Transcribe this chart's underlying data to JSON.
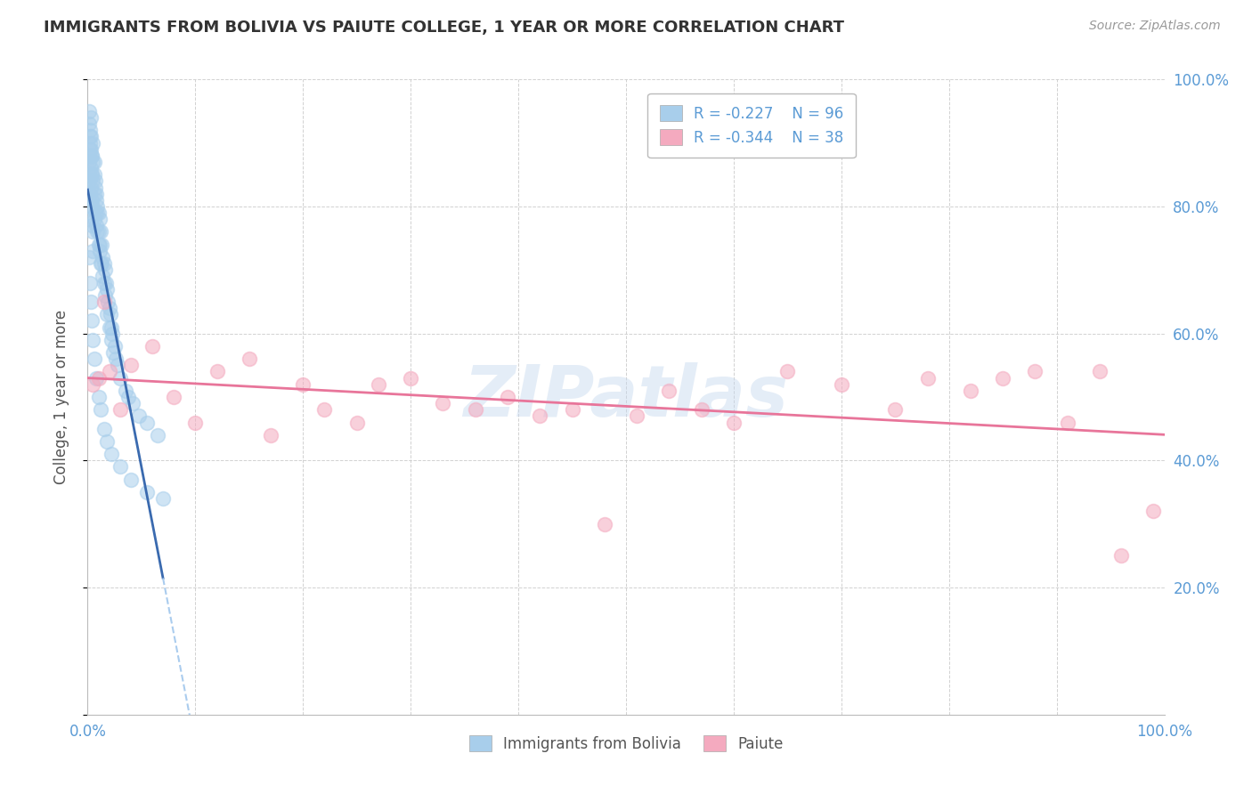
{
  "title": "IMMIGRANTS FROM BOLIVIA VS PAIUTE COLLEGE, 1 YEAR OR MORE CORRELATION CHART",
  "source_text": "Source: ZipAtlas.com",
  "ylabel": "College, 1 year or more",
  "xlim": [
    0.0,
    1.0
  ],
  "ylim": [
    0.0,
    1.0
  ],
  "xticks": [
    0.0,
    0.1,
    0.2,
    0.3,
    0.4,
    0.5,
    0.6,
    0.7,
    0.8,
    0.9,
    1.0
  ],
  "yticks": [
    0.0,
    0.2,
    0.4,
    0.6,
    0.8,
    1.0
  ],
  "blue_color": "#A8CEEB",
  "pink_color": "#F4AABF",
  "blue_line_color": "#3A6AAF",
  "pink_line_color": "#E8759A",
  "dashed_line_color": "#AACCEE",
  "legend_r1": "R = -0.227",
  "legend_n1": "N = 96",
  "legend_r2": "R = -0.344",
  "legend_n2": "N = 38",
  "watermark": "ZIPatlas",
  "n_blue": 96,
  "n_pink": 38,
  "background_color": "#FFFFFF",
  "grid_color": "#CCCCCC",
  "blue_x": [
    0.001,
    0.001,
    0.001,
    0.002,
    0.002,
    0.002,
    0.002,
    0.003,
    0.003,
    0.003,
    0.003,
    0.003,
    0.004,
    0.004,
    0.004,
    0.004,
    0.005,
    0.005,
    0.005,
    0.005,
    0.005,
    0.006,
    0.006,
    0.006,
    0.007,
    0.007,
    0.008,
    0.008,
    0.009,
    0.009,
    0.01,
    0.01,
    0.011,
    0.011,
    0.012,
    0.012,
    0.013,
    0.014,
    0.015,
    0.015,
    0.016,
    0.017,
    0.018,
    0.019,
    0.02,
    0.021,
    0.022,
    0.023,
    0.025,
    0.026,
    0.001,
    0.001,
    0.002,
    0.002,
    0.003,
    0.003,
    0.004,
    0.004,
    0.005,
    0.006,
    0.007,
    0.008,
    0.009,
    0.01,
    0.011,
    0.013,
    0.014,
    0.016,
    0.018,
    0.02,
    0.022,
    0.024,
    0.028,
    0.03,
    0.035,
    0.038,
    0.042,
    0.048,
    0.055,
    0.065,
    0.001,
    0.002,
    0.003,
    0.004,
    0.005,
    0.006,
    0.008,
    0.01,
    0.012,
    0.015,
    0.018,
    0.022,
    0.03,
    0.04,
    0.055,
    0.07
  ],
  "blue_y": [
    0.87,
    0.85,
    0.84,
    0.92,
    0.9,
    0.88,
    0.82,
    0.89,
    0.86,
    0.83,
    0.8,
    0.78,
    0.88,
    0.85,
    0.81,
    0.77,
    0.87,
    0.84,
    0.8,
    0.76,
    0.73,
    0.85,
    0.82,
    0.78,
    0.83,
    0.79,
    0.81,
    0.77,
    0.8,
    0.76,
    0.79,
    0.74,
    0.78,
    0.73,
    0.76,
    0.71,
    0.74,
    0.72,
    0.71,
    0.68,
    0.7,
    0.68,
    0.67,
    0.65,
    0.64,
    0.63,
    0.61,
    0.6,
    0.58,
    0.56,
    0.95,
    0.93,
    0.91,
    0.89,
    0.94,
    0.91,
    0.88,
    0.85,
    0.9,
    0.87,
    0.84,
    0.82,
    0.79,
    0.76,
    0.74,
    0.71,
    0.69,
    0.66,
    0.63,
    0.61,
    0.59,
    0.57,
    0.55,
    0.53,
    0.51,
    0.5,
    0.49,
    0.47,
    0.46,
    0.44,
    0.72,
    0.68,
    0.65,
    0.62,
    0.59,
    0.56,
    0.53,
    0.5,
    0.48,
    0.45,
    0.43,
    0.41,
    0.39,
    0.37,
    0.35,
    0.34
  ],
  "pink_x": [
    0.005,
    0.01,
    0.015,
    0.02,
    0.03,
    0.04,
    0.06,
    0.08,
    0.1,
    0.12,
    0.15,
    0.17,
    0.2,
    0.22,
    0.25,
    0.27,
    0.3,
    0.33,
    0.36,
    0.39,
    0.42,
    0.45,
    0.48,
    0.51,
    0.54,
    0.57,
    0.6,
    0.65,
    0.7,
    0.75,
    0.78,
    0.82,
    0.85,
    0.88,
    0.91,
    0.94,
    0.96,
    0.99
  ],
  "pink_y": [
    0.52,
    0.53,
    0.65,
    0.54,
    0.48,
    0.55,
    0.58,
    0.5,
    0.46,
    0.54,
    0.56,
    0.44,
    0.52,
    0.48,
    0.46,
    0.52,
    0.53,
    0.49,
    0.48,
    0.5,
    0.47,
    0.48,
    0.3,
    0.47,
    0.51,
    0.48,
    0.46,
    0.54,
    0.52,
    0.48,
    0.53,
    0.51,
    0.53,
    0.54,
    0.46,
    0.54,
    0.25,
    0.32
  ]
}
